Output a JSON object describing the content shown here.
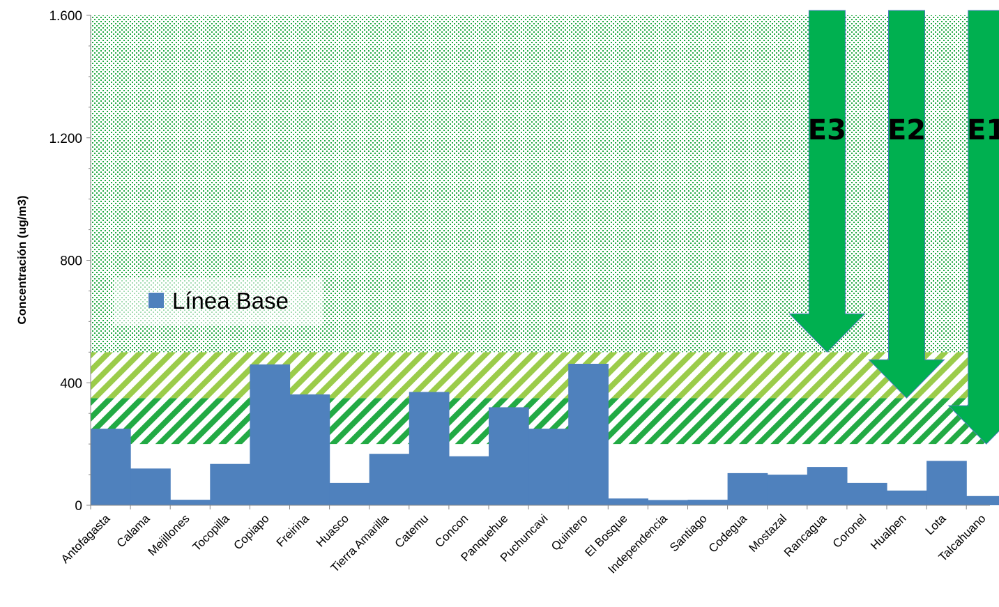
{
  "chart_data": {
    "type": "bar",
    "title": "",
    "xlabel": "",
    "ylabel": "Concentración (ug/m3)",
    "ylim": [
      0,
      1600
    ],
    "yticks": [
      0,
      400,
      800,
      1200,
      1600
    ],
    "ytick_labels": [
      "0",
      "400",
      "800",
      "1.200",
      "1.600"
    ],
    "grid": false,
    "legend": {
      "position": "left-middle",
      "entries": [
        "Línea Base"
      ]
    },
    "categories": [
      "Antofagasta",
      "Calama",
      "Mejillones",
      "Tocopilla",
      "Copiapo",
      "Freirina",
      "Huasco",
      "Tierra Amarilla",
      "Catemu",
      "Concon",
      "Panquehue",
      "Puchuncavi",
      "Quintero",
      "El Bosque",
      "Independencia",
      "Santiago",
      "Codegua",
      "Mostazal",
      "Rancagua",
      "Coronel",
      "Hualpen",
      "Lota",
      "Talcahuano"
    ],
    "series": [
      {
        "name": "Línea Base",
        "color": "#4f81bd",
        "values": [
          250,
          120,
          18,
          135,
          460,
          362,
          73,
          168,
          370,
          160,
          320,
          250,
          462,
          22,
          17,
          18,
          105,
          100,
          125,
          73,
          48,
          145,
          30
        ]
      }
    ],
    "bands": [
      {
        "from": 200,
        "to": 350,
        "pattern": "diagonal-stripes",
        "color": "#22aa44"
      },
      {
        "from": 350,
        "to": 500,
        "pattern": "diagonal-stripes",
        "color": "#9bcc4a"
      },
      {
        "from": 500,
        "to": 1600,
        "pattern": "dots",
        "color": "#22aa44"
      }
    ],
    "annotations": [
      {
        "label": "E3",
        "category": "Rancagua",
        "tip_value": 500,
        "color": "#00b050"
      },
      {
        "label": "E2",
        "category": "Hualpen",
        "tip_value": 350,
        "color": "#00b050"
      },
      {
        "label": "E1",
        "category": "Talcahuano",
        "tip_value": 200,
        "color": "#00b050"
      }
    ]
  }
}
